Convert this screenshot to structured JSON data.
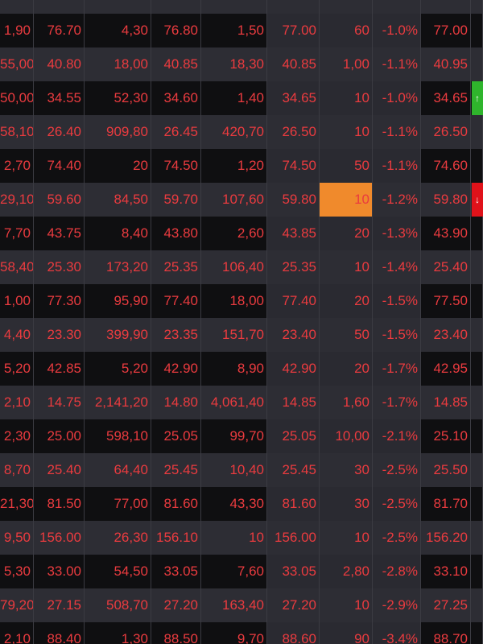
{
  "table": {
    "rows": [
      [
        "1,90",
        "76.70",
        "4,30",
        "76.80",
        "1,50",
        "77.00",
        "60",
        "-1.0%",
        "77.00"
      ],
      [
        "55,00",
        "40.80",
        "18,00",
        "40.85",
        "18,30",
        "40.85",
        "1,00",
        "-1.1%",
        "40.95"
      ],
      [
        "50,00",
        "34.55",
        "52,30",
        "34.60",
        "1,40",
        "34.65",
        "10",
        "-1.0%",
        "34.65"
      ],
      [
        "58,10",
        "26.40",
        "909,80",
        "26.45",
        "420,70",
        "26.50",
        "10",
        "-1.1%",
        "26.50"
      ],
      [
        "2,70",
        "74.40",
        "20",
        "74.50",
        "1,20",
        "74.50",
        "50",
        "-1.1%",
        "74.60"
      ],
      [
        "29,10",
        "59.60",
        "84,50",
        "59.70",
        "107,60",
        "59.80",
        "10",
        "-1.2%",
        "59.80"
      ],
      [
        "7,70",
        "43.75",
        "8,40",
        "43.80",
        "2,60",
        "43.85",
        "20",
        "-1.3%",
        "43.90"
      ],
      [
        "58,40",
        "25.30",
        "173,20",
        "25.35",
        "106,40",
        "25.35",
        "10",
        "-1.4%",
        "25.40"
      ],
      [
        "1,00",
        "77.30",
        "95,90",
        "77.40",
        "18,00",
        "77.40",
        "20",
        "-1.5%",
        "77.50"
      ],
      [
        "4,40",
        "23.30",
        "399,90",
        "23.35",
        "151,70",
        "23.40",
        "50",
        "-1.5%",
        "23.40"
      ],
      [
        "5,20",
        "42.85",
        "5,20",
        "42.90",
        "8,90",
        "42.90",
        "20",
        "-1.7%",
        "42.95"
      ],
      [
        "2,10",
        "14.75",
        "2,141,20",
        "14.80",
        "4,061,40",
        "14.85",
        "1,60",
        "-1.7%",
        "14.85"
      ],
      [
        "2,30",
        "25.00",
        "598,10",
        "25.05",
        "99,70",
        "25.05",
        "10,00",
        "-2.1%",
        "25.10"
      ],
      [
        "8,70",
        "25.40",
        "64,40",
        "25.45",
        "10,40",
        "25.45",
        "30",
        "-2.5%",
        "25.50"
      ],
      [
        "21,30",
        "81.50",
        "77,00",
        "81.60",
        "43,30",
        "81.60",
        "30",
        "-2.5%",
        "81.70"
      ],
      [
        "9,50",
        "156.00",
        "26,30",
        "156.10",
        "10",
        "156.00",
        "10",
        "-2.5%",
        "156.20"
      ],
      [
        "5,30",
        "33.00",
        "54,50",
        "33.05",
        "7,60",
        "33.05",
        "2,80",
        "-2.8%",
        "33.10"
      ],
      [
        "79,20",
        "27.15",
        "508,70",
        "27.20",
        "163,40",
        "27.20",
        "10",
        "-2.9%",
        "27.25"
      ],
      [
        "2,10",
        "88.40",
        "1,30",
        "88.50",
        "9,70",
        "88.60",
        "90",
        "-3.4%",
        "88.70"
      ]
    ]
  }
}
